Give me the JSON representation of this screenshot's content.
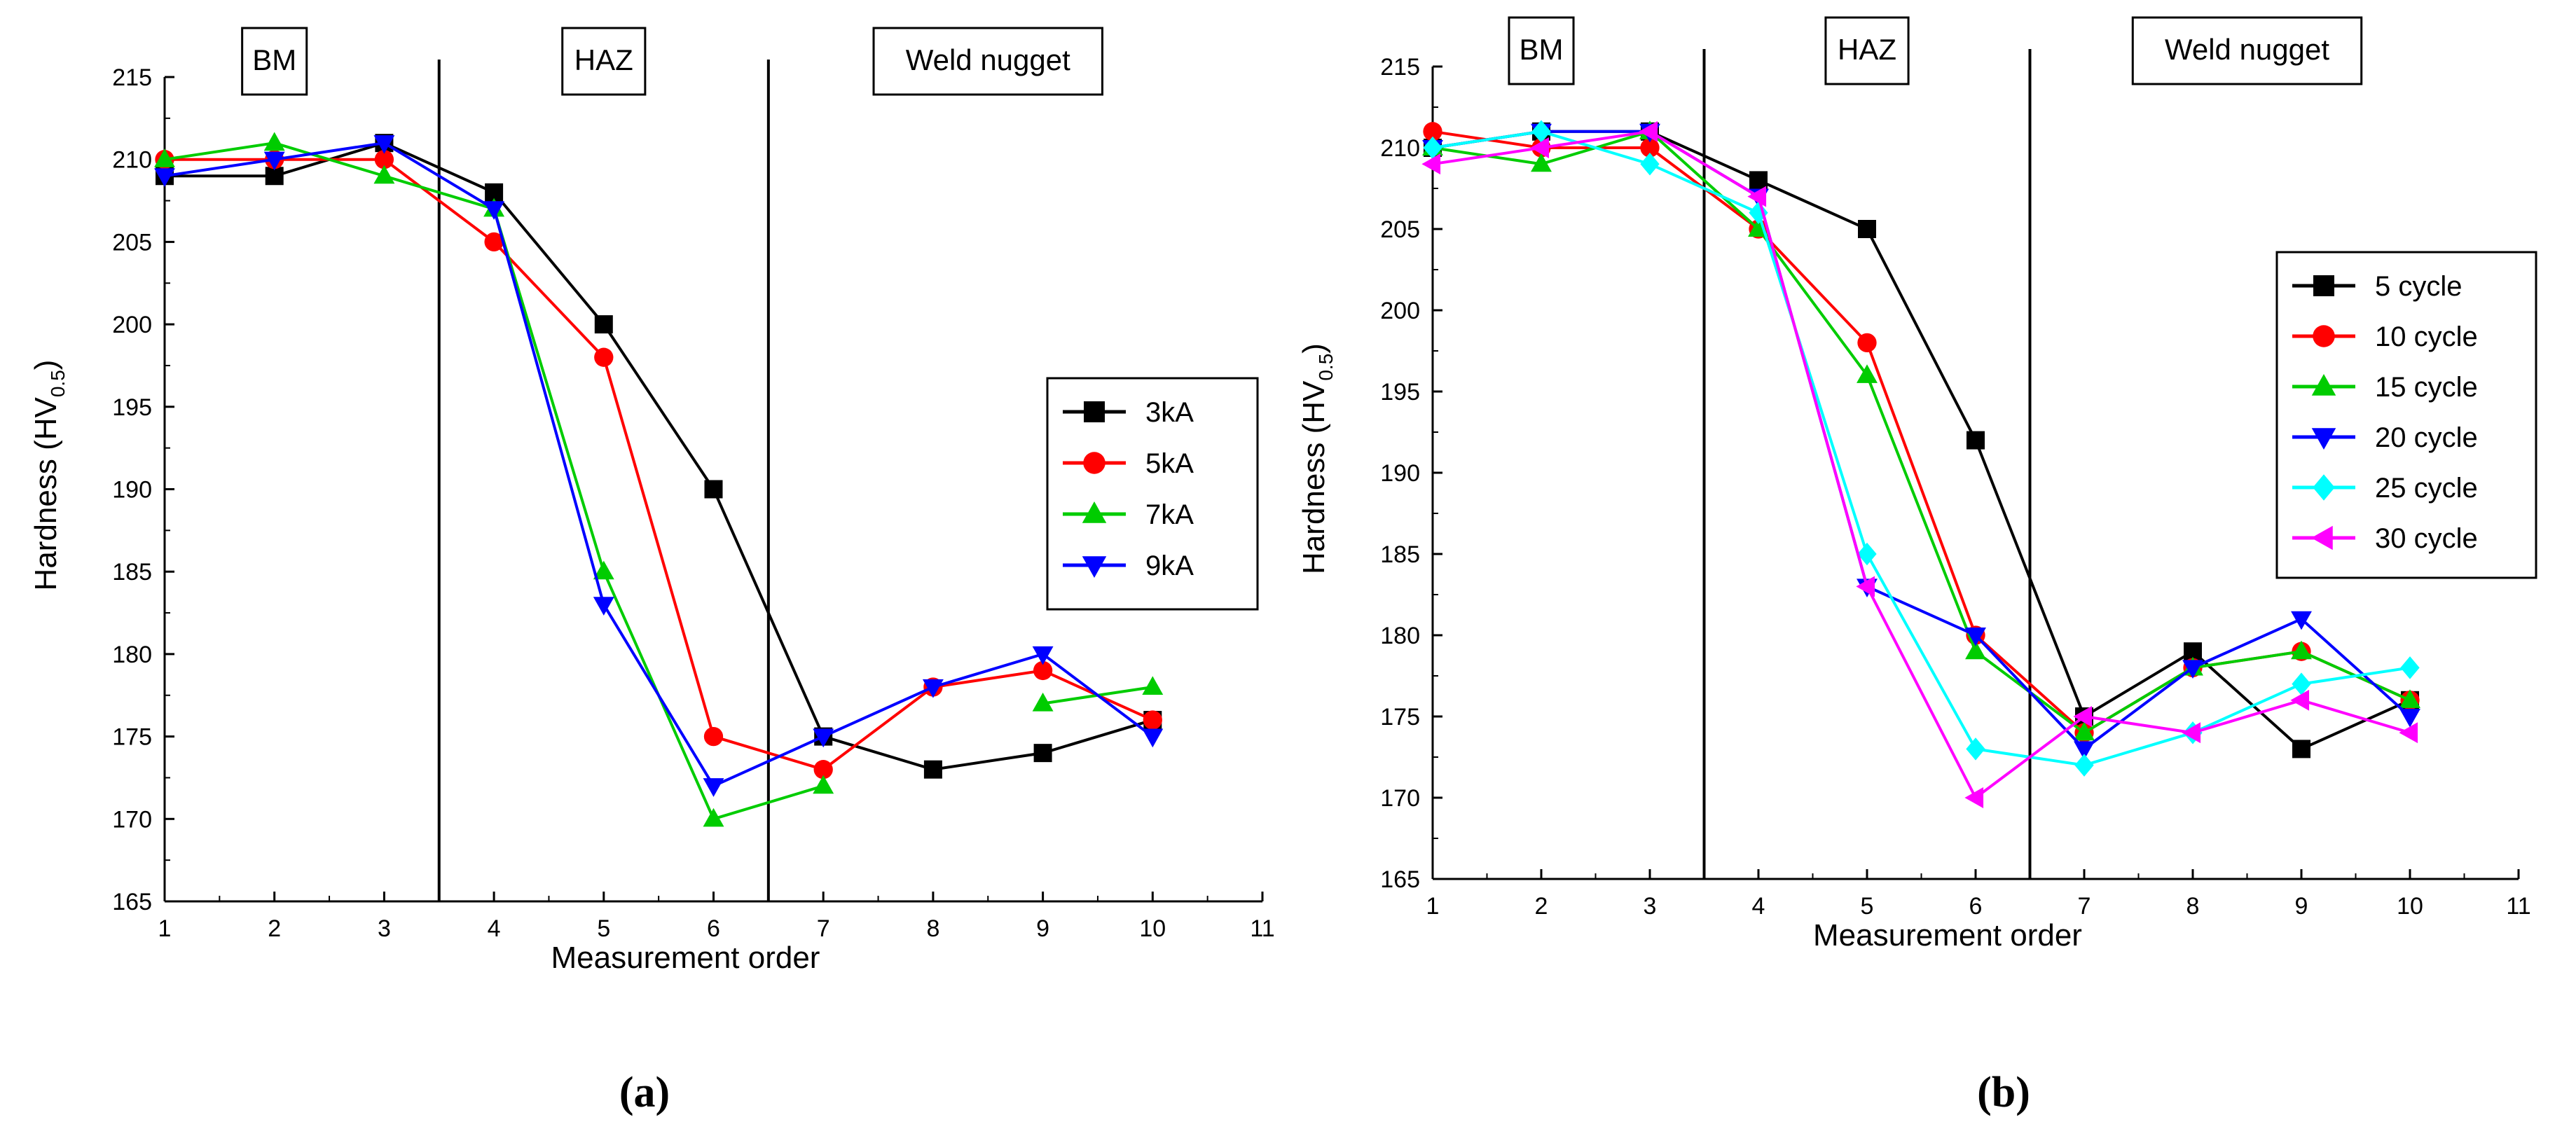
{
  "chart_data": [
    {
      "panel_label": "(a)",
      "type": "line",
      "xlabel": "Measurement order",
      "ylabel": "Hardness (HV",
      "ylabel_sub": "0.5",
      "ylabel_close": ")",
      "xlim": [
        1,
        11
      ],
      "ylim": [
        165,
        215
      ],
      "xticks": [
        1,
        2,
        3,
        4,
        5,
        6,
        7,
        8,
        9,
        10,
        11
      ],
      "yticks": [
        165,
        170,
        175,
        180,
        185,
        190,
        195,
        200,
        205,
        210,
        215
      ],
      "dividers": [
        3.5,
        6.5
      ],
      "zones": [
        {
          "label": "BM",
          "x": 2
        },
        {
          "label": "HAZ",
          "x": 5
        },
        {
          "label": "Weld nugget",
          "x": 8.5
        }
      ],
      "legend_position": "right",
      "x": [
        1,
        2,
        3,
        4,
        5,
        6,
        7,
        8,
        9,
        10
      ],
      "series": [
        {
          "name": "3kA",
          "color": "#000000",
          "marker": "square",
          "values": [
            209,
            209,
            211,
            208,
            200,
            190,
            175,
            173,
            174,
            176
          ]
        },
        {
          "name": "5kA",
          "color": "#ff0000",
          "marker": "circle",
          "values": [
            210,
            210,
            210,
            205,
            198,
            175,
            173,
            178,
            179,
            176
          ]
        },
        {
          "name": "7kA",
          "color": "#00cc00",
          "marker": "triangle-up",
          "values": [
            210,
            211,
            209,
            207,
            185,
            170,
            172,
            null,
            177,
            178
          ]
        },
        {
          "name": "9kA",
          "color": "#0000ff",
          "marker": "triangle-down",
          "values": [
            209,
            210,
            211,
            207,
            183,
            172,
            175,
            178,
            180,
            175
          ]
        }
      ]
    },
    {
      "panel_label": "(b)",
      "type": "line",
      "xlabel": "Measurement order",
      "ylabel": "Hardness (HV",
      "ylabel_sub": "0.5",
      "ylabel_close": ")",
      "xlim": [
        1,
        11
      ],
      "ylim": [
        165,
        215
      ],
      "xticks": [
        1,
        2,
        3,
        4,
        5,
        6,
        7,
        8,
        9,
        10,
        11
      ],
      "yticks": [
        165,
        170,
        175,
        180,
        185,
        190,
        195,
        200,
        205,
        210,
        215
      ],
      "dividers": [
        3.5,
        6.5
      ],
      "zones": [
        {
          "label": "BM",
          "x": 2
        },
        {
          "label": "HAZ",
          "x": 5
        },
        {
          "label": "Weld nugget",
          "x": 8.5
        }
      ],
      "legend_position": "right",
      "x": [
        1,
        2,
        3,
        4,
        5,
        6,
        7,
        8,
        9,
        10
      ],
      "series": [
        {
          "name": "5 cycle",
          "color": "#000000",
          "marker": "square",
          "values": [
            210,
            211,
            211,
            208,
            205,
            192,
            175,
            179,
            173,
            176
          ]
        },
        {
          "name": "10 cycle",
          "color": "#ff0000",
          "marker": "circle",
          "values": [
            211,
            210,
            210,
            205,
            198,
            180,
            174,
            178,
            179,
            176
          ]
        },
        {
          "name": "15 cycle",
          "color": "#00cc00",
          "marker": "triangle-up",
          "values": [
            210,
            209,
            211,
            205,
            196,
            179,
            174,
            178,
            179,
            176
          ]
        },
        {
          "name": "20 cycle",
          "color": "#0000ff",
          "marker": "triangle-down",
          "values": [
            210,
            211,
            211,
            207,
            183,
            180,
            173,
            178,
            181,
            175
          ]
        },
        {
          "name": "25 cycle",
          "color": "#00ffff",
          "marker": "diamond",
          "values": [
            210,
            211,
            209,
            206,
            185,
            173,
            172,
            174,
            177,
            178
          ]
        },
        {
          "name": "30 cycle",
          "color": "#ff00ff",
          "marker": "left-triangle",
          "values": [
            209,
            210,
            211,
            207,
            183,
            170,
            175,
            174,
            176,
            174
          ]
        }
      ]
    }
  ]
}
